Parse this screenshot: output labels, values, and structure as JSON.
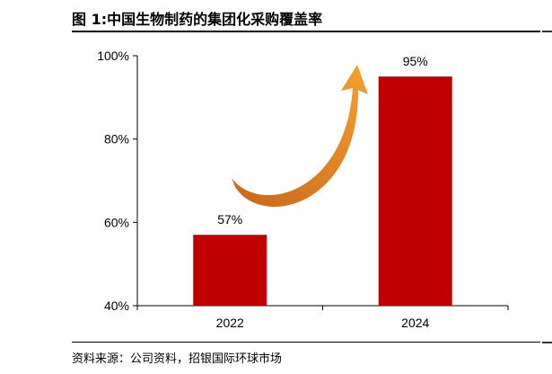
{
  "figure_title": "图 1:中国生物制药的集团化采购覆盖率",
  "source": "资料来源：公司资料，招银国际环球市场",
  "chart_data": {
    "type": "bar",
    "categories": [
      "2022",
      "2024"
    ],
    "values": [
      57,
      95
    ],
    "value_labels": [
      "57%",
      "95%"
    ],
    "yticks": [
      "40%",
      "60%",
      "80%",
      "100%"
    ],
    "ytick_values": [
      40,
      60,
      80,
      100
    ],
    "ylim": [
      40,
      100
    ],
    "grid": false,
    "bar_color": "#C00000",
    "arrow_color": "#F0901E"
  }
}
